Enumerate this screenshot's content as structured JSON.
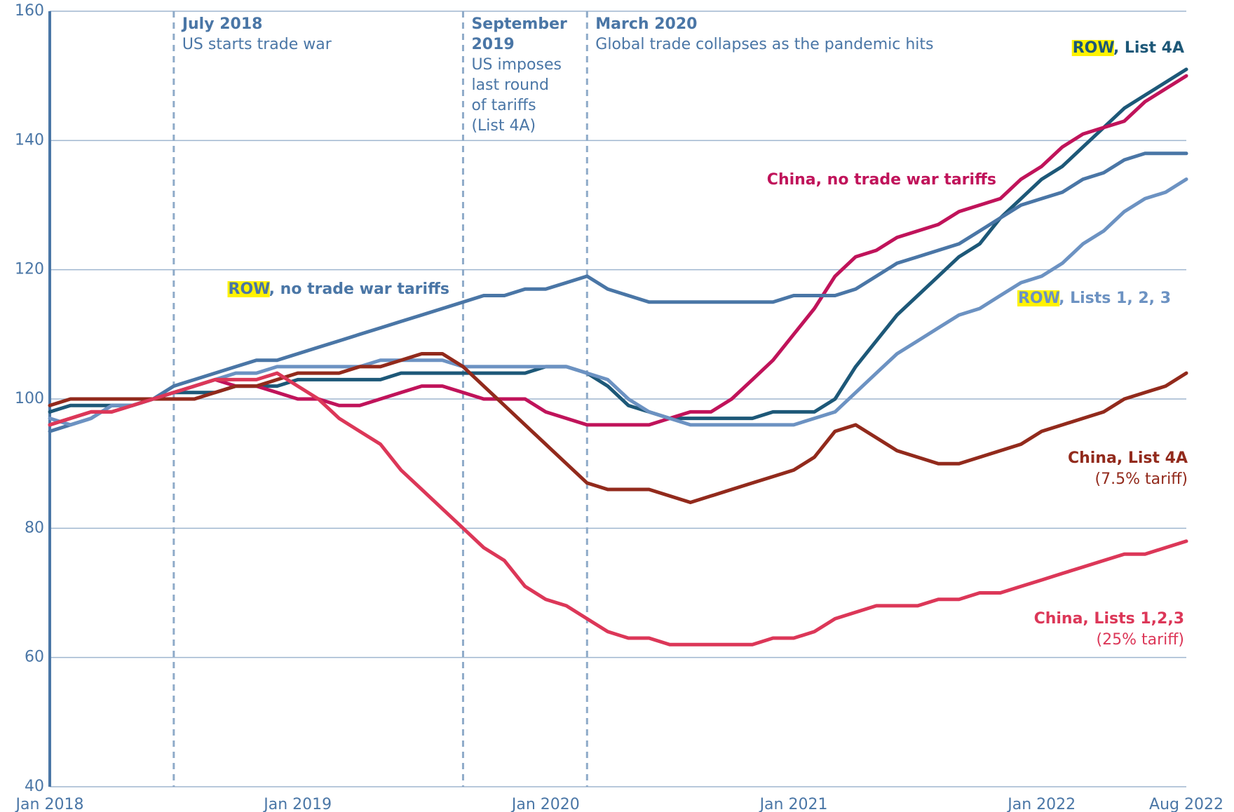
{
  "chart_data": {
    "type": "line",
    "x": [
      "Jan 2018",
      "Feb 2018",
      "Mar 2018",
      "Apr 2018",
      "May 2018",
      "Jun 2018",
      "Jul 2018",
      "Aug 2018",
      "Sep 2018",
      "Oct 2018",
      "Nov 2018",
      "Dec 2018",
      "Jan 2019",
      "Feb 2019",
      "Mar 2019",
      "Apr 2019",
      "May 2019",
      "Jun 2019",
      "Jul 2019",
      "Aug 2019",
      "Sep 2019",
      "Oct 2019",
      "Nov 2019",
      "Dec 2019",
      "Jan 2020",
      "Feb 2020",
      "Mar 2020",
      "Apr 2020",
      "May 2020",
      "Jun 2020",
      "Jul 2020",
      "Aug 2020",
      "Sep 2020",
      "Oct 2020",
      "Nov 2020",
      "Dec 2020",
      "Jan 2021",
      "Feb 2021",
      "Mar 2021",
      "Apr 2021",
      "May 2021",
      "Jun 2021",
      "Jul 2021",
      "Aug 2021",
      "Sep 2021",
      "Oct 2021",
      "Nov 2021",
      "Dec 2021",
      "Jan 2022",
      "Feb 2022",
      "Mar 2022",
      "Apr 2022",
      "May 2022",
      "Jun 2022",
      "Jul 2022",
      "Aug 2022"
    ],
    "xticks": [
      "Jan 2018",
      "Jan 2019",
      "Jan 2020",
      "Jan 2021",
      "Jan 2022",
      "Aug 2022"
    ],
    "ylim": [
      40,
      160
    ],
    "yticks": [
      40,
      60,
      80,
      100,
      120,
      140,
      160
    ],
    "grid": true,
    "highlight": "ROW",
    "series": [
      {
        "name": "ROW, List 4A",
        "color": "#1d5878",
        "values": [
          98,
          99,
          99,
          99,
          99,
          100,
          101,
          101,
          101,
          102,
          102,
          102,
          103,
          103,
          103,
          103,
          103,
          104,
          104,
          104,
          104,
          104,
          104,
          104,
          105,
          105,
          104,
          102,
          99,
          98,
          97,
          97,
          97,
          97,
          97,
          98,
          98,
          98,
          100,
          105,
          109,
          113,
          116,
          119,
          122,
          124,
          128,
          131,
          134,
          136,
          139,
          142,
          145,
          147,
          149,
          151
        ]
      },
      {
        "name": "China, no trade war tariffs",
        "color": "#c0135a",
        "values": [
          96,
          97,
          98,
          98,
          99,
          100,
          101,
          102,
          103,
          102,
          102,
          101,
          100,
          100,
          99,
          99,
          100,
          101,
          102,
          102,
          101,
          100,
          100,
          100,
          98,
          97,
          96,
          96,
          96,
          96,
          97,
          98,
          98,
          100,
          103,
          106,
          110,
          114,
          119,
          122,
          123,
          125,
          126,
          127,
          129,
          130,
          131,
          134,
          136,
          139,
          141,
          142,
          143,
          146,
          148,
          150
        ]
      },
      {
        "name": "ROW, no trade war tariffs",
        "color": "#4a76a6",
        "values": [
          95,
          96,
          97,
          99,
          99,
          100,
          102,
          103,
          104,
          105,
          106,
          106,
          107,
          108,
          109,
          110,
          111,
          112,
          113,
          114,
          115,
          116,
          116,
          117,
          117,
          118,
          119,
          117,
          116,
          115,
          115,
          115,
          115,
          115,
          115,
          115,
          116,
          116,
          116,
          117,
          119,
          121,
          122,
          123,
          124,
          126,
          128,
          130,
          131,
          132,
          134,
          135,
          137,
          138,
          138,
          138
        ]
      },
      {
        "name": "ROW, Lists 1, 2, 3",
        "color": "#6c92c2",
        "values": [
          97,
          96,
          97,
          99,
          99,
          100,
          101,
          102,
          103,
          104,
          104,
          105,
          105,
          105,
          105,
          105,
          106,
          106,
          106,
          106,
          105,
          105,
          105,
          105,
          105,
          105,
          104,
          103,
          100,
          98,
          97,
          96,
          96,
          96,
          96,
          96,
          96,
          97,
          98,
          101,
          104,
          107,
          109,
          111,
          113,
          114,
          116,
          118,
          119,
          121,
          124,
          126,
          129,
          131,
          132,
          134
        ]
      },
      {
        "name": "China, List 4A",
        "note": "(7.5% tariff)",
        "color": "#922a1c",
        "values": [
          99,
          100,
          100,
          100,
          100,
          100,
          100,
          100,
          101,
          102,
          102,
          103,
          104,
          104,
          104,
          105,
          105,
          106,
          107,
          107,
          105,
          102,
          99,
          96,
          93,
          90,
          87,
          86,
          86,
          86,
          85,
          84,
          85,
          86,
          87,
          88,
          89,
          91,
          95,
          96,
          94,
          92,
          91,
          90,
          90,
          91,
          92,
          93,
          95,
          96,
          97,
          98,
          100,
          101,
          102,
          104
        ]
      },
      {
        "name": "China, Lists 1,2,3",
        "note": "(25% tariff)",
        "color": "#dc3758",
        "values": [
          96,
          97,
          98,
          98,
          99,
          100,
          101,
          102,
          103,
          103,
          103,
          104,
          102,
          100,
          97,
          95,
          93,
          89,
          86,
          83,
          80,
          77,
          75,
          71,
          69,
          68,
          66,
          64,
          63,
          63,
          62,
          62,
          62,
          62,
          62,
          63,
          63,
          64,
          66,
          67,
          68,
          68,
          68,
          69,
          69,
          70,
          70,
          71,
          72,
          73,
          74,
          75,
          76,
          76,
          77,
          78
        ]
      }
    ],
    "events": [
      {
        "x": "Jul 2018",
        "title": [
          "July 2018"
        ],
        "text": [
          "US starts trade war"
        ]
      },
      {
        "x": "Sep 2019",
        "title": [
          "September",
          "2019"
        ],
        "text": [
          "US imposes",
          "last round",
          "of tariffs",
          "(List 4A)"
        ]
      },
      {
        "x": "Mar 2020",
        "title": [
          "March 2020"
        ],
        "text": [
          "Global trade collapses as the pandemic hits"
        ]
      }
    ]
  }
}
